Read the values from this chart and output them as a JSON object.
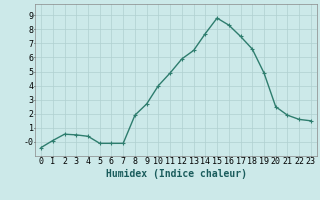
{
  "x": [
    0,
    1,
    2,
    3,
    4,
    5,
    6,
    7,
    8,
    9,
    10,
    11,
    12,
    13,
    14,
    15,
    16,
    17,
    18,
    19,
    20,
    21,
    22,
    23
  ],
  "y": [
    -0.4,
    0.1,
    0.55,
    0.5,
    0.4,
    -0.1,
    -0.1,
    -0.1,
    1.9,
    2.7,
    4.0,
    4.9,
    5.9,
    6.5,
    7.7,
    8.8,
    8.3,
    7.5,
    6.6,
    4.9,
    2.5,
    1.9,
    1.6,
    1.5
  ],
  "line_color": "#2e7d6e",
  "marker": "+",
  "marker_size": 3,
  "background_color": "#cce9e9",
  "grid_color": "#b0d0d0",
  "xlabel": "Humidex (Indice chaleur)",
  "xlim": [
    -0.5,
    23.5
  ],
  "ylim": [
    -1.0,
    9.8
  ],
  "yticks": [
    0,
    1,
    2,
    3,
    4,
    5,
    6,
    7,
    8,
    9
  ],
  "ytick_labels": [
    "-0",
    "1",
    "2",
    "3",
    "4",
    "5",
    "6",
    "7",
    "8",
    "9"
  ],
  "xticks": [
    0,
    1,
    2,
    3,
    4,
    5,
    6,
    7,
    8,
    9,
    10,
    11,
    12,
    13,
    14,
    15,
    16,
    17,
    18,
    19,
    20,
    21,
    22,
    23
  ],
  "xlabel_fontsize": 7,
  "tick_fontsize": 6,
  "line_width": 1.0
}
